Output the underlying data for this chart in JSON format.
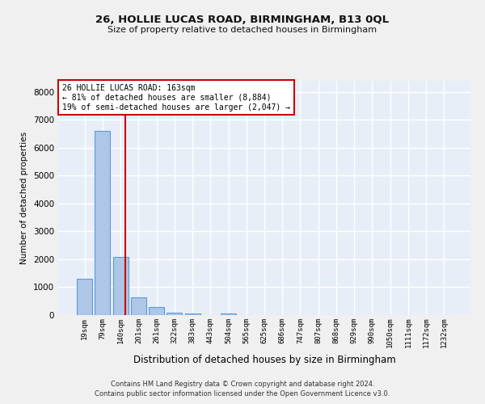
{
  "title_line1": "26, HOLLIE LUCAS ROAD, BIRMINGHAM, B13 0QL",
  "title_line2": "Size of property relative to detached houses in Birmingham",
  "xlabel": "Distribution of detached houses by size in Birmingham",
  "ylabel": "Number of detached properties",
  "categories": [
    "19sqm",
    "79sqm",
    "140sqm",
    "201sqm",
    "261sqm",
    "322sqm",
    "383sqm",
    "443sqm",
    "504sqm",
    "565sqm",
    "625sqm",
    "686sqm",
    "747sqm",
    "807sqm",
    "868sqm",
    "929sqm",
    "990sqm",
    "1050sqm",
    "1111sqm",
    "1172sqm",
    "1232sqm"
  ],
  "values": [
    1300,
    6600,
    2100,
    650,
    300,
    100,
    60,
    0,
    60,
    0,
    0,
    0,
    0,
    0,
    0,
    0,
    0,
    0,
    0,
    0,
    0
  ],
  "bar_color": "#aec6e8",
  "bar_edge_color": "#5b9bd5",
  "background_color": "#e8eef8",
  "grid_color": "#ffffff",
  "fig_color": "#f0f0f0",
  "vline_x": 2.27,
  "vline_color": "#cc0000",
  "annotation_text": "26 HOLLIE LUCAS ROAD: 163sqm\n← 81% of detached houses are smaller (8,884)\n19% of semi-detached houses are larger (2,047) →",
  "annotation_box_color": "#ffffff",
  "annotation_box_edge": "#cc0000",
  "ylim": [
    0,
    8400
  ],
  "yticks": [
    0,
    1000,
    2000,
    3000,
    4000,
    5000,
    6000,
    7000,
    8000
  ],
  "footer_line1": "Contains HM Land Registry data © Crown copyright and database right 2024.",
  "footer_line2": "Contains public sector information licensed under the Open Government Licence v3.0."
}
